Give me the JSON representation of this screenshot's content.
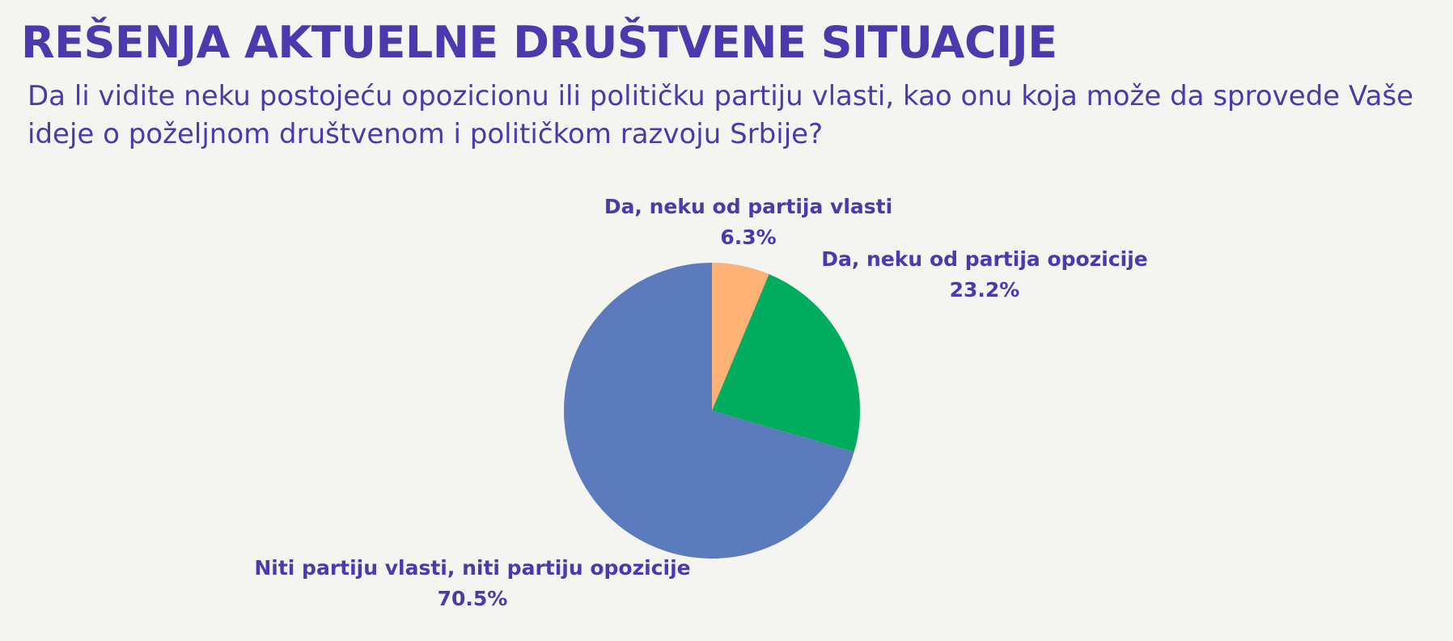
{
  "header": {
    "title": "REŠENJA AKTUELNE DRUŠTVENE SITUACIJE",
    "question": "Da li vidite neku postojeću opozicionu ili političku partiju vlasti, kao onu koja može da sprovede Vaše ideje o poželjnom društvenom i političkom razvoju Srbije?"
  },
  "chart_data": {
    "type": "pie",
    "start_angle": "12 o'clock",
    "direction": "clockwise",
    "slices": [
      {
        "label": "Da, neku od partija vlasti",
        "value": 6.3,
        "value_label": "6.3%",
        "color": "#fdb174"
      },
      {
        "label": "Da, neku od partija opozicije",
        "value": 23.2,
        "value_label": "23.2%",
        "color": "#00ad5f"
      },
      {
        "label": "Niti partiju vlasti, niti partiju opozicije",
        "value": 70.5,
        "value_label": "70.5%",
        "color": "#5b7bbc"
      }
    ]
  }
}
